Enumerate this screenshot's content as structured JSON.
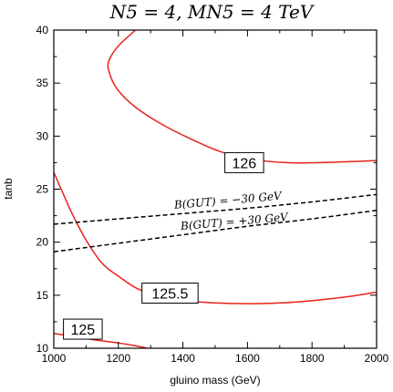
{
  "chart_data": {
    "type": "line",
    "title": "N5 = 4,  MN5 = 4 TeV",
    "xlabel": "gluino mass (GeV)",
    "ylabel": "tanb",
    "xlim": [
      1000,
      2000
    ],
    "ylim": [
      10,
      40
    ],
    "xticks": [
      "1000",
      "1200",
      "1400",
      "1600",
      "1800",
      "2000"
    ],
    "yticks": [
      "10",
      "15",
      "20",
      "25",
      "30",
      "35",
      "40"
    ],
    "grid": false,
    "series": [
      {
        "name": "126",
        "color": "#e8221a",
        "style": "solid",
        "x": [
          1253,
          1200,
          1172,
          1170,
          1195,
          1250,
          1330,
          1420,
          1520,
          1620,
          1720,
          1820,
          1920,
          2000
        ],
        "y": [
          40,
          38.5,
          37.2,
          36.2,
          34.5,
          32.8,
          31.2,
          29.8,
          28.5,
          27.8,
          27.5,
          27.5,
          27.6,
          27.7
        ]
      },
      {
        "name": "125.5",
        "color": "#e8221a",
        "style": "solid",
        "x": [
          1000,
          1030,
          1060,
          1100,
          1150,
          1200,
          1260,
          1330,
          1420,
          1520,
          1620,
          1720,
          1820,
          1920,
          2000
        ],
        "y": [
          26.6,
          24.5,
          22.5,
          20.2,
          18.0,
          16.8,
          15.6,
          14.9,
          14.45,
          14.25,
          14.2,
          14.3,
          14.55,
          14.9,
          15.3
        ]
      },
      {
        "name": "125",
        "color": "#e8221a",
        "style": "solid",
        "x": [
          1000,
          1050,
          1100,
          1150,
          1200,
          1250,
          1290
        ],
        "y": [
          11.4,
          11.15,
          10.9,
          10.7,
          10.5,
          10.25,
          10.0
        ]
      },
      {
        "name": "B(GUT) = -30 GeV",
        "color": "#000000",
        "style": "dashed",
        "x": [
          1000,
          1200,
          1400,
          1600,
          1800,
          2000
        ],
        "y": [
          21.7,
          22.2,
          22.7,
          23.2,
          23.8,
          24.5
        ]
      },
      {
        "name": "B(GUT) = +30 GeV",
        "color": "#000000",
        "style": "dashed",
        "x": [
          1000,
          1200,
          1400,
          1600,
          1800,
          2000
        ],
        "y": [
          19.1,
          19.9,
          20.7,
          21.5,
          22.2,
          23.0
        ]
      }
    ],
    "annotations": [
      {
        "text": "126",
        "x": 1590,
        "y": 27.5,
        "boxed": true
      },
      {
        "text": "125.5",
        "x": 1360,
        "y": 15.2,
        "boxed": true
      },
      {
        "text": "125",
        "x": 1090,
        "y": 11.8,
        "boxed": true
      },
      {
        "text": "B(GUT) = −30 GeV",
        "x": 1540,
        "y": 23.6,
        "boxed": false
      },
      {
        "text": "B(GUT) = +30 GeV",
        "x": 1560,
        "y": 21.6,
        "boxed": false
      }
    ]
  }
}
